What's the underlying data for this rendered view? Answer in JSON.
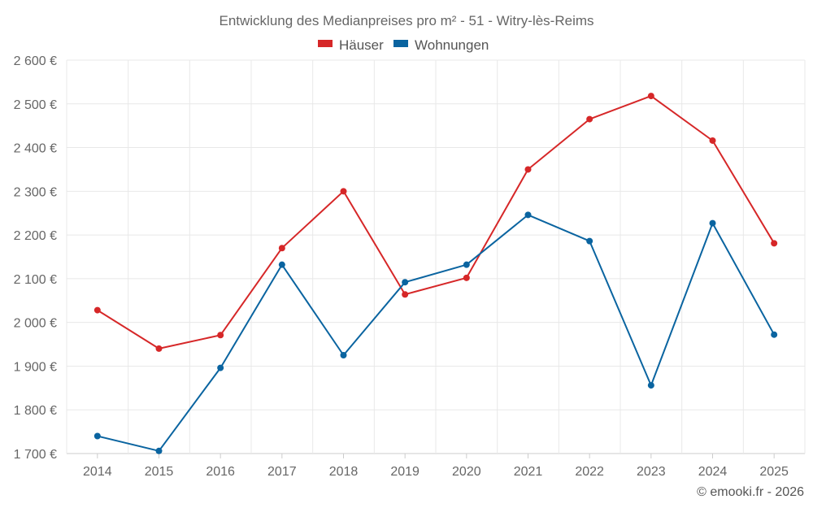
{
  "chart_data": {
    "type": "line",
    "title": "Entwicklung des Medianpreises pro m² - 51 - Witry-lès-Reims",
    "categories": [
      "2014",
      "2015",
      "2016",
      "2017",
      "2018",
      "2019",
      "2020",
      "2021",
      "2022",
      "2023",
      "2024",
      "2025"
    ],
    "y_ticks": [
      1700,
      1800,
      1900,
      2000,
      2100,
      2200,
      2300,
      2400,
      2500,
      2600
    ],
    "y_tick_labels": [
      "1 700 €",
      "1 800 €",
      "1 900 €",
      "2 000 €",
      "2 100 €",
      "2 200 €",
      "2 300 €",
      "2 400 €",
      "2 500 €",
      "2 600 €"
    ],
    "ylim": [
      1700,
      2600
    ],
    "grid": true,
    "legend_position": "top-center",
    "series": [
      {
        "name": "Häuser",
        "color": "#d62728",
        "values": [
          2028,
          1940,
          1971,
          2170,
          2300,
          2064,
          2102,
          2350,
          2465,
          2518,
          2416,
          2181
        ]
      },
      {
        "name": "Wohnungen",
        "color": "#0a64a0",
        "values": [
          1740,
          1706,
          1896,
          2132,
          1925,
          2092,
          2132,
          2246,
          2186,
          1856,
          2227,
          1972
        ]
      }
    ]
  },
  "footer": {
    "copyright": "© emooki.fr - 2026"
  }
}
